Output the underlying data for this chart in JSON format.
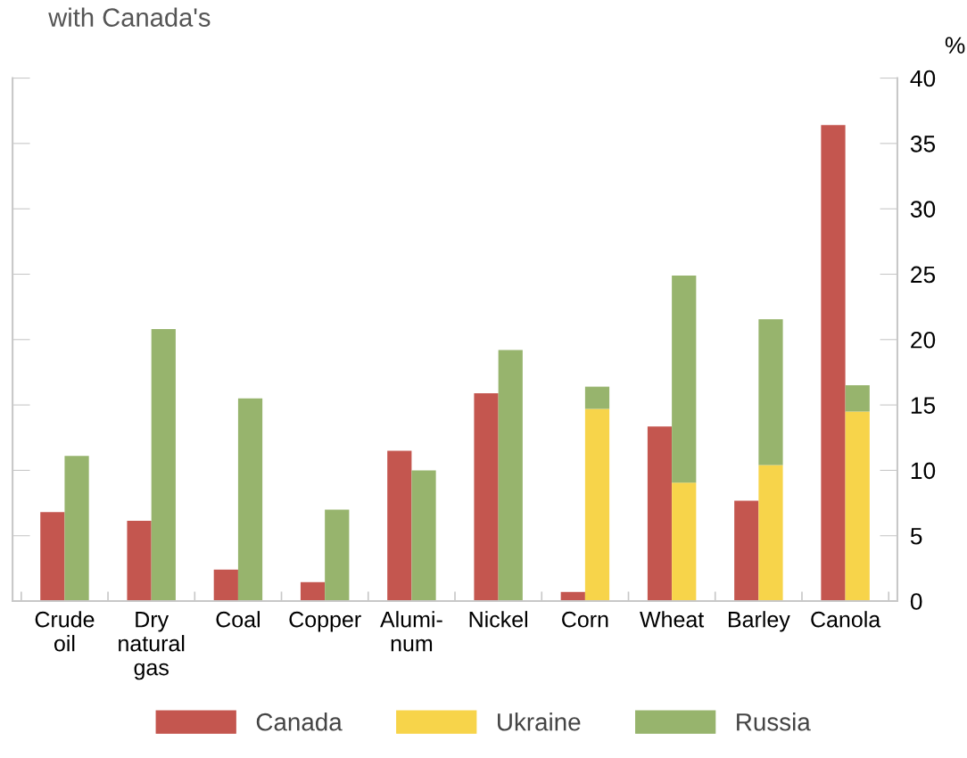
{
  "chart_data": {
    "type": "bar",
    "title": "with Canada's",
    "ylabel": "%",
    "categories": [
      "Crude\noil",
      "Dry\nnatural\ngas",
      "Coal",
      "Copper",
      "Alumi-\nnum",
      "Nickel",
      "Corn",
      "Wheat",
      "Barley",
      "Canola"
    ],
    "series": [
      {
        "name": "Canada",
        "color": "#c4564f",
        "values": [
          6.8,
          6.15,
          2.4,
          1.45,
          11.5,
          15.9,
          0.7,
          13.35,
          7.67,
          36.4
        ]
      },
      {
        "name": "Ukraine",
        "color": "#f7d44a",
        "values": [
          null,
          null,
          null,
          null,
          null,
          null,
          14.7,
          9.05,
          10.4,
          14.5
        ]
      },
      {
        "name": "Russia",
        "color": "#97b46d",
        "base": [
          0,
          0,
          0,
          0,
          0,
          0,
          14.7,
          9.05,
          10.4,
          14.5
        ],
        "values": [
          11.1,
          20.8,
          15.5,
          7.0,
          10.0,
          19.2,
          1.7,
          15.85,
          11.15,
          2.0
        ]
      }
    ],
    "ylim": [
      0,
      40
    ],
    "yticks": [
      0,
      5,
      10,
      15,
      20,
      25,
      30,
      35,
      40
    ],
    "grid": false,
    "legend": "bottom"
  }
}
